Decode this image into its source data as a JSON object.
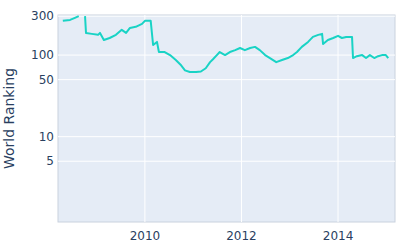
{
  "chart_data": {
    "type": "line",
    "y_label": "World Ranking",
    "log": "y",
    "grid": true,
    "x": [
      2008.3,
      2008.45,
      2008.55,
      2008.63,
      2008.7,
      2008.76,
      2008.78,
      2008.9,
      2009.03,
      2009.07,
      2009.15,
      2009.27,
      2009.4,
      2009.52,
      2009.61,
      2009.69,
      2009.81,
      2009.94,
      2010.0,
      2010.12,
      2010.17,
      2010.25,
      2010.29,
      2010.41,
      2010.52,
      2010.64,
      2010.75,
      2010.83,
      2010.93,
      2011.06,
      2011.16,
      2011.26,
      2011.35,
      2011.41,
      2011.49,
      2011.55,
      2011.66,
      2011.76,
      2011.87,
      2011.97,
      2012.07,
      2012.18,
      2012.28,
      2012.38,
      2012.49,
      2012.59,
      2012.72,
      2012.84,
      2012.96,
      2013.07,
      2013.15,
      2013.25,
      2013.38,
      2013.48,
      2013.59,
      2013.67,
      2013.69,
      2013.79,
      2013.9,
      2014.0,
      2014.08,
      2014.17,
      2014.25,
      2014.29,
      2014.31,
      2014.39,
      2014.5,
      2014.58,
      2014.66,
      2014.75,
      2014.83,
      2014.91,
      2014.99,
      2015.04
    ],
    "series": [
      {
        "name": "World Ranking",
        "color": "#19d3c5",
        "values": [
          263,
          270,
          286,
          300,
          null,
          300,
          187,
          182,
          177,
          187,
          153,
          162,
          177,
          204,
          187,
          215,
          222,
          241,
          263,
          263,
          133,
          145,
          109,
          109,
          100,
          87,
          75,
          65,
          62,
          62,
          63,
          69,
          82,
          89,
          100,
          109,
          100,
          109,
          115,
          122,
          115,
          122,
          126,
          115,
          100,
          92,
          82,
          87,
          92,
          100,
          109,
          126,
          145,
          167,
          177,
          182,
          137,
          153,
          162,
          172,
          162,
          167,
          167,
          167,
          92,
          97,
          100,
          92,
          100,
          92,
          97,
          100,
          100,
          92
        ]
      }
    ],
    "xlim": [
      2008.2,
      2015.18
    ],
    "xticks": [
      2010,
      2012,
      2014
    ],
    "ylim": [
      0.9,
      310
    ],
    "yticks": [
      5,
      10,
      50,
      100,
      300
    ]
  }
}
